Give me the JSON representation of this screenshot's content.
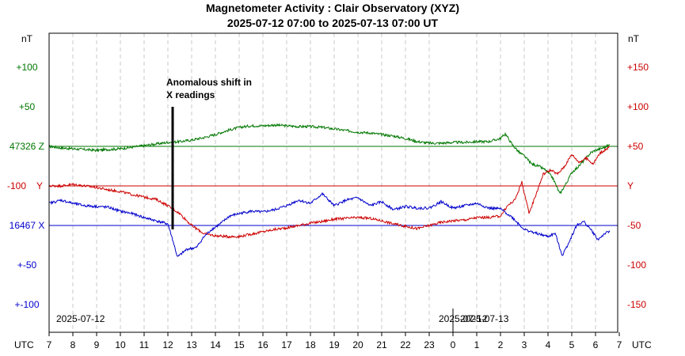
{
  "chart_data": {
    "type": "line",
    "title": "Magnetometer Activity : Clair Observatory (XYZ)",
    "subtitle": "2025-07-12 07:00 to 2025-07-13 07:00 UT",
    "left_unit": "nT",
    "right_unit": "nT",
    "x_axis_label_left": "UTC",
    "x_axis_label_right": "UTC",
    "x_ticks": [
      "7",
      "8",
      "9",
      "10",
      "11",
      "12",
      "13",
      "14",
      "15",
      "16",
      "17",
      "18",
      "19",
      "20",
      "21",
      "22",
      "23",
      "0",
      "1",
      "2",
      "3",
      "4",
      "5",
      "6",
      "7"
    ],
    "x_range_hours": [
      0,
      24
    ],
    "date_labels": [
      {
        "text": "2025-07-12",
        "hour": 0.3
      },
      {
        "text": "2025-07-12",
        "hour": 16.4
      },
      {
        "text": "2025-07-13",
        "hour": 17.3
      }
    ],
    "day_boundary_hour": 17,
    "left_axis_labels": [
      {
        "text": "+100",
        "level": 100,
        "color": "#007700"
      },
      {
        "text": "+50",
        "level": 50,
        "color": "#007700"
      },
      {
        "text": "47326 Z",
        "level": 0,
        "color": "#007700"
      },
      {
        "text": "-100",
        "level": -50,
        "color": "#cc0000",
        "suffix": "Y",
        "suffix_color": "#cc0000"
      },
      {
        "text": "16467 X",
        "level": -100,
        "color": "#0000cc"
      },
      {
        "text": "+-50",
        "level": -150,
        "color": "#0000cc"
      },
      {
        "text": "+-100",
        "level": -200,
        "color": "#0000cc"
      }
    ],
    "right_axis_labels": [
      {
        "text": "+150",
        "level": 100
      },
      {
        "text": "+100",
        "level": 50
      },
      {
        "text": "+50",
        "level": 0
      },
      {
        "text": "Y",
        "level": -50
      },
      {
        "text": "-50",
        "level": -100
      },
      {
        "text": "-100",
        "level": -150
      },
      {
        "text": "-150",
        "level": -200
      }
    ],
    "y_range_plot_units": [
      -220,
      150
    ],
    "baselines": [
      {
        "name": "Z",
        "level": 0,
        "color": "#007700"
      },
      {
        "name": "Y",
        "level": -50,
        "color": "#cc0000"
      },
      {
        "name": "X",
        "level": -100,
        "color": "#0000cc"
      }
    ],
    "annotation": {
      "lines": [
        "Anomalous shift in",
        "X readings"
      ],
      "marker_hour": 5.2,
      "marker_top_level": 50,
      "marker_bottom_level": -105
    },
    "series": [
      {
        "name": "Z",
        "color": "#007700",
        "x": [
          0,
          0.5,
          1,
          1.5,
          2,
          2.5,
          3,
          3.5,
          4,
          4.5,
          5,
          5.5,
          6,
          6.5,
          7,
          7.5,
          8,
          8.5,
          9,
          9.5,
          10,
          10.5,
          11,
          11.5,
          12,
          12.5,
          13,
          13.5,
          14,
          14.5,
          15,
          15.5,
          16,
          16.5,
          17,
          17.5,
          18,
          18.5,
          19,
          19.2,
          19.5,
          19.8,
          20,
          20.3,
          20.6,
          20.9,
          21.2,
          21.5,
          21.8,
          22,
          22.3,
          22.6,
          22.8,
          23,
          23.2,
          23.4,
          23.6
        ],
        "values": [
          0,
          -2,
          -3,
          -4,
          -5,
          -4,
          -3,
          -1,
          1,
          3,
          5,
          6,
          8,
          11,
          15,
          20,
          24,
          26,
          26,
          27,
          26,
          25,
          25,
          24,
          22,
          20,
          18,
          17,
          15,
          13,
          10,
          6,
          4,
          4,
          5,
          5,
          6,
          6,
          10,
          16,
          2,
          -8,
          -12,
          -22,
          -25,
          -30,
          -40,
          -60,
          -45,
          -33,
          -25,
          -15,
          -8,
          -5,
          -3,
          -1,
          2
        ]
      },
      {
        "name": "Y",
        "color": "#cc0000",
        "x": [
          0,
          0.5,
          1,
          1.5,
          2,
          2.5,
          3,
          3.5,
          4,
          4.5,
          5,
          5.5,
          6,
          6.5,
          7,
          7.5,
          8,
          8.5,
          9,
          9.5,
          10,
          10.5,
          11,
          11.5,
          12,
          12.5,
          13,
          13.5,
          14,
          14.5,
          15,
          15.5,
          16,
          16.5,
          17,
          17.5,
          18,
          18.5,
          19,
          19.3,
          19.6,
          19.9,
          20.2,
          20.5,
          20.8,
          21.1,
          21.4,
          21.7,
          22,
          22.3,
          22.6,
          22.9,
          23.2,
          23.4,
          23.6
        ],
        "values": [
          -50,
          -50,
          -48,
          -50,
          -52,
          -55,
          -57,
          -61,
          -64,
          -67,
          -75,
          -85,
          -100,
          -110,
          -113,
          -114,
          -114,
          -111,
          -108,
          -105,
          -103,
          -100,
          -97,
          -95,
          -92,
          -91,
          -90,
          -91,
          -94,
          -98,
          -101,
          -104,
          -100,
          -96,
          -94,
          -93,
          -90,
          -90,
          -88,
          -75,
          -68,
          -45,
          -85,
          -60,
          -35,
          -30,
          -35,
          -25,
          -10,
          -20,
          -15,
          -22,
          -8,
          -5,
          0
        ]
      },
      {
        "name": "X",
        "color": "#0000cc",
        "x": [
          0,
          0.5,
          1,
          1.5,
          2,
          2.5,
          3,
          3.5,
          4,
          4.5,
          5,
          5.2,
          5.4,
          5.8,
          6.2,
          6.5,
          6.8,
          7.2,
          7.6,
          8,
          8.5,
          9,
          9.5,
          10,
          10.5,
          11,
          11.5,
          12,
          12.5,
          13,
          13.5,
          14,
          14.5,
          15,
          15.5,
          16,
          16.5,
          17,
          17.5,
          18,
          18.5,
          19,
          19.5,
          20,
          20.5,
          21,
          21.3,
          21.6,
          21.9,
          22.2,
          22.5,
          22.8,
          23.1,
          23.4,
          23.6
        ],
        "values": [
          -72,
          -68,
          -72,
          -75,
          -76,
          -77,
          -82,
          -85,
          -90,
          -94,
          -98,
          -118,
          -140,
          -130,
          -128,
          -115,
          -106,
          -98,
          -88,
          -85,
          -82,
          -83,
          -80,
          -75,
          -68,
          -72,
          -60,
          -75,
          -68,
          -65,
          -75,
          -70,
          -80,
          -76,
          -78,
          -78,
          -70,
          -78,
          -75,
          -72,
          -78,
          -79,
          -90,
          -105,
          -110,
          -114,
          -110,
          -138,
          -120,
          -100,
          -95,
          -105,
          -118,
          -110,
          -108
        ]
      }
    ]
  }
}
